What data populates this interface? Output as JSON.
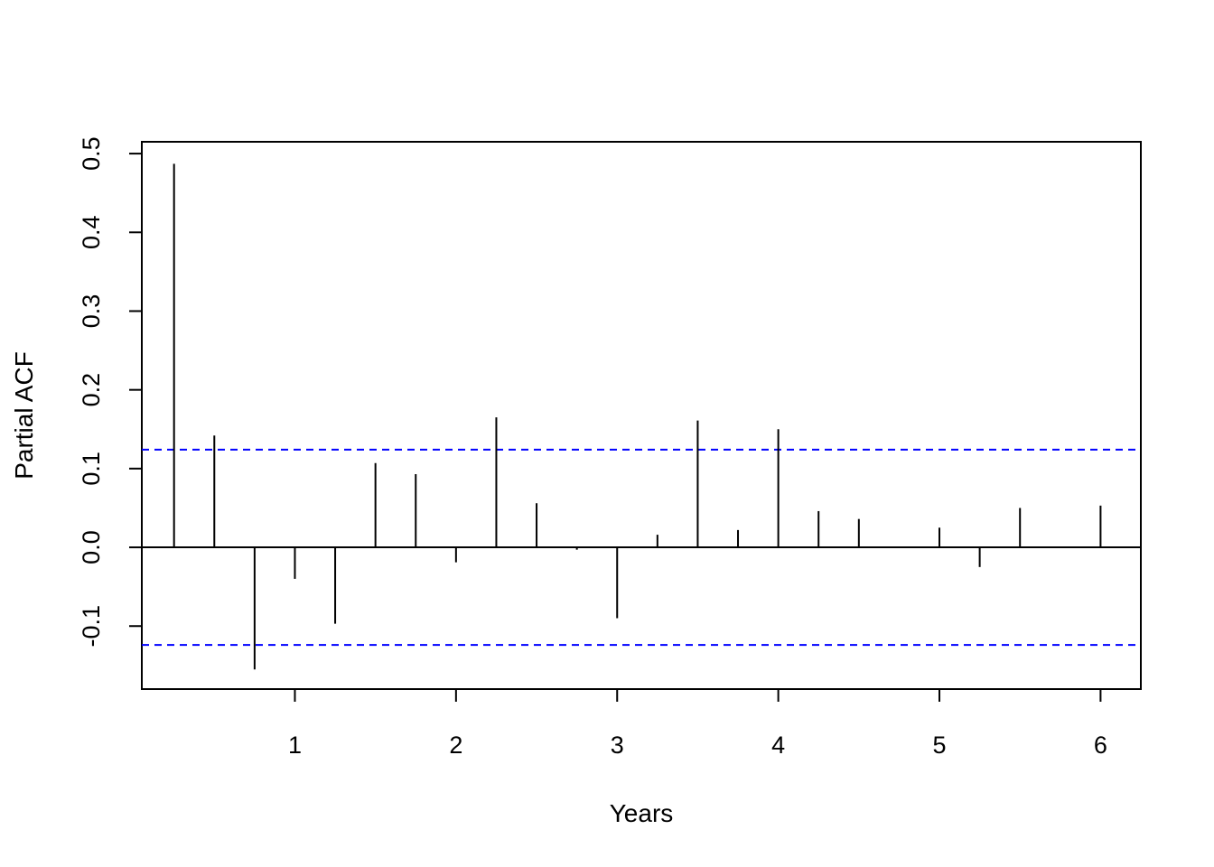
{
  "chart_data": {
    "type": "bar",
    "subtype": "partial-acf",
    "title": "",
    "xlabel": "Years",
    "ylabel": "Partial ACF",
    "xlim": [
      0.05,
      6.25
    ],
    "ylim": [
      -0.18,
      0.515
    ],
    "x_ticks": [
      1,
      2,
      3,
      4,
      5,
      6
    ],
    "y_ticks": [
      -0.1,
      0.0,
      0.1,
      0.2,
      0.3,
      0.4,
      0.5
    ],
    "x_tick_labels": [
      "1",
      "2",
      "3",
      "4",
      "5",
      "6"
    ],
    "y_tick_labels": [
      "-0.1",
      "0.0",
      "0.1",
      "0.2",
      "0.3",
      "0.4",
      "0.5"
    ],
    "confidence_limit": 0.124,
    "confidence_color": "#0000ff",
    "bar_color": "#000000",
    "grid": false,
    "points": [
      {
        "x": 0.25,
        "y": 0.487
      },
      {
        "x": 0.5,
        "y": 0.142
      },
      {
        "x": 0.75,
        "y": -0.155
      },
      {
        "x": 1.0,
        "y": -0.04
      },
      {
        "x": 1.25,
        "y": -0.097
      },
      {
        "x": 1.5,
        "y": 0.107
      },
      {
        "x": 1.75,
        "y": 0.093
      },
      {
        "x": 2.0,
        "y": -0.019
      },
      {
        "x": 2.25,
        "y": 0.165
      },
      {
        "x": 2.5,
        "y": 0.056
      },
      {
        "x": 2.75,
        "y": -0.003
      },
      {
        "x": 3.0,
        "y": -0.09
      },
      {
        "x": 3.25,
        "y": 0.016
      },
      {
        "x": 3.5,
        "y": 0.161
      },
      {
        "x": 3.75,
        "y": 0.022
      },
      {
        "x": 4.0,
        "y": 0.15
      },
      {
        "x": 4.25,
        "y": 0.046
      },
      {
        "x": 4.5,
        "y": 0.036
      },
      {
        "x": 4.75,
        "y": 0.001
      },
      {
        "x": 5.0,
        "y": 0.025
      },
      {
        "x": 5.25,
        "y": -0.025
      },
      {
        "x": 5.5,
        "y": 0.05
      },
      {
        "x": 5.75,
        "y": -0.001
      },
      {
        "x": 6.0,
        "y": 0.053
      }
    ]
  }
}
